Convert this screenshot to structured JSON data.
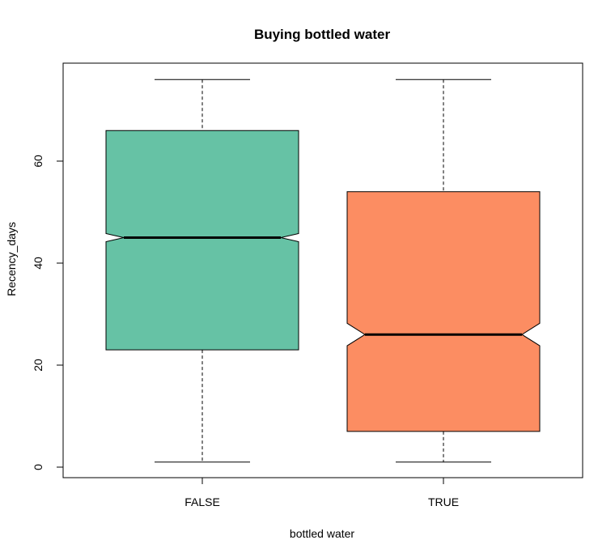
{
  "chart_data": {
    "type": "box",
    "title": "Buying bottled water",
    "xlabel": "bottled water",
    "ylabel": "Recency_days",
    "categories": [
      "FALSE",
      "TRUE"
    ],
    "boxes": [
      {
        "category": "FALSE",
        "whisker_low": 1,
        "q1": 23,
        "median": 45,
        "q3": 66,
        "whisker_high": 76,
        "notch_low": 44.2,
        "notch_high": 45.8,
        "color": "#66C2A5"
      },
      {
        "category": "TRUE",
        "whisker_low": 1,
        "q1": 7,
        "median": 26,
        "q3": 54,
        "whisker_high": 76,
        "notch_low": 23.8,
        "notch_high": 28.2,
        "color": "#FC8D62"
      }
    ],
    "y_ticks": [
      0,
      20,
      40,
      60
    ],
    "ylim": [
      -2,
      79
    ],
    "notched": true,
    "grid": false
  }
}
